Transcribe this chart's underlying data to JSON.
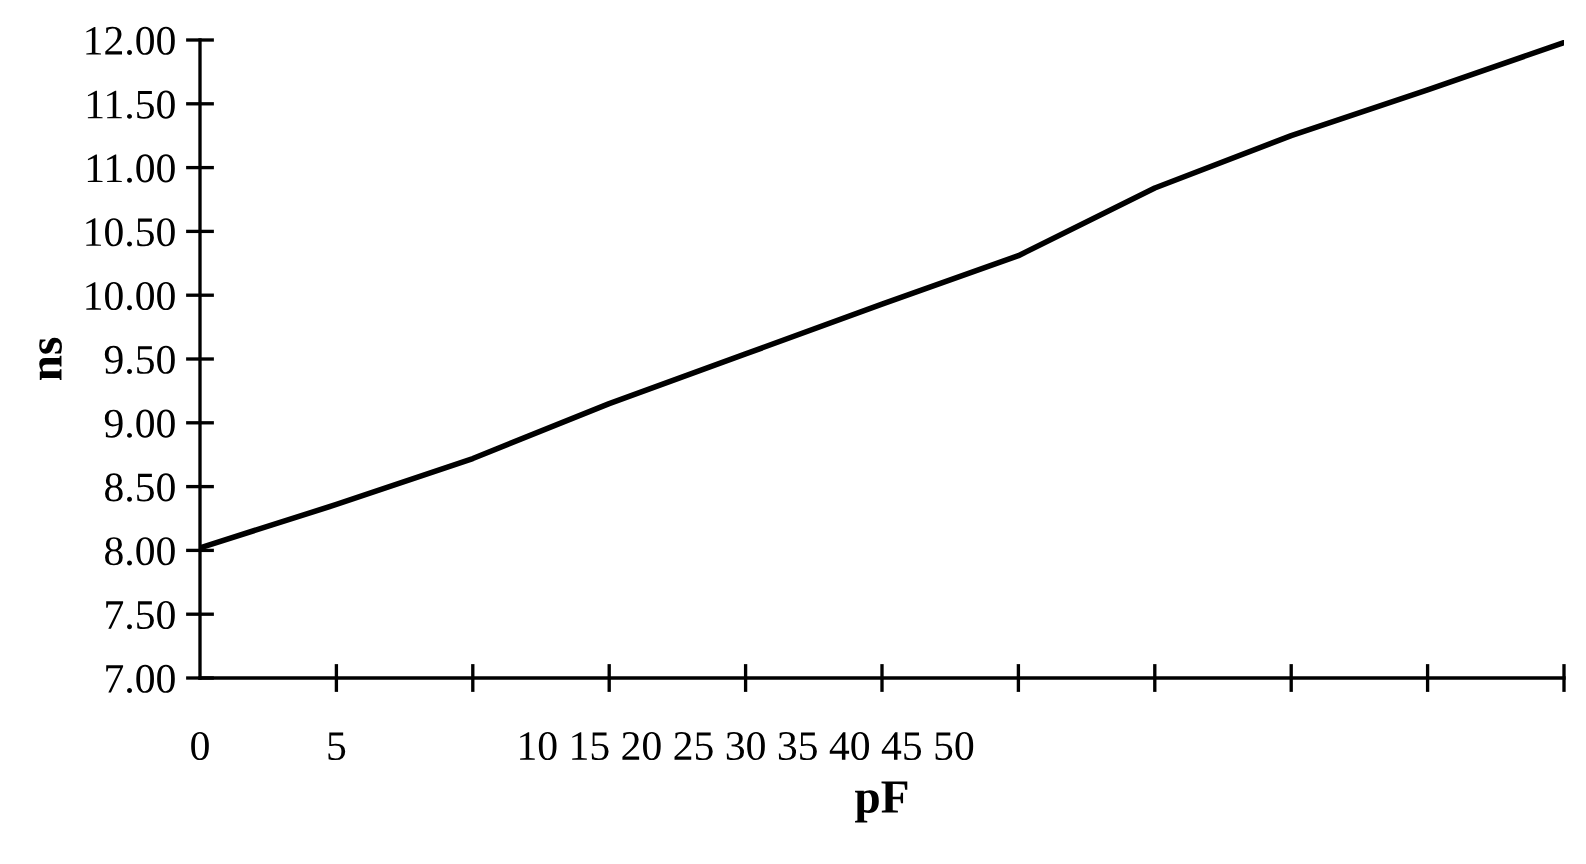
{
  "chart_data": {
    "type": "line",
    "xlabel": "pF",
    "ylabel": "ns",
    "categories": [
      "0",
      "5",
      null,
      null,
      "10 15 20 25 30 35 40 45 50",
      null,
      null,
      null,
      null,
      null,
      null
    ],
    "series": [
      {
        "color": "#000000",
        "values": [
          8.02,
          8.36,
          8.72,
          9.15,
          9.54,
          9.93,
          10.31,
          10.84,
          11.25,
          11.61,
          11.98
        ]
      }
    ],
    "ylim": [
      7,
      12
    ],
    "yticks": [
      {
        "value": 7,
        "label": "7.00"
      },
      {
        "value": 7.5,
        "label": "7.50"
      },
      {
        "value": 8,
        "label": "8.00"
      },
      {
        "value": 8.5,
        "label": "8.50"
      },
      {
        "value": 9,
        "label": "9.00"
      },
      {
        "value": 9.5,
        "label": "9.50"
      },
      {
        "value": 10,
        "label": "10.00"
      },
      {
        "value": 10.5,
        "label": "10.50"
      },
      {
        "value": 11,
        "label": "11.00"
      },
      {
        "value": 11.5,
        "label": "11.50"
      },
      {
        "value": 12,
        "label": "12.00"
      }
    ],
    "grid": false,
    "legend": false,
    "marker": "none",
    "line_style": "solid"
  }
}
